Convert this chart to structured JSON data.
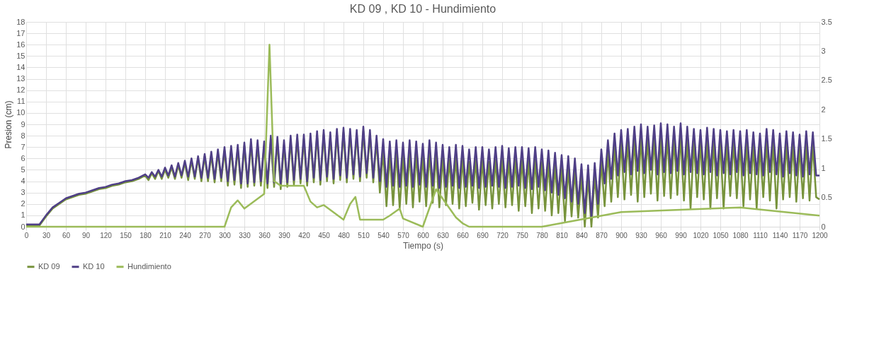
{
  "chart_data": {
    "type": "line",
    "title": "KD 09 , KD 10 - Hundimiento",
    "xlabel": "Tiempo (s)",
    "ylabel": "Presion (cm)",
    "x": [
      0,
      10,
      20,
      30,
      40,
      50,
      60,
      70,
      80,
      90,
      100,
      110,
      120,
      130,
      140,
      150,
      160,
      170,
      180,
      185,
      190,
      195,
      200,
      205,
      210,
      215,
      220,
      225,
      230,
      235,
      240,
      245,
      250,
      255,
      260,
      265,
      270,
      275,
      280,
      285,
      290,
      295,
      300,
      305,
      310,
      315,
      320,
      325,
      330,
      335,
      340,
      345,
      350,
      355,
      360,
      365,
      370,
      375,
      380,
      385,
      390,
      395,
      400,
      405,
      410,
      415,
      420,
      425,
      430,
      435,
      440,
      445,
      450,
      455,
      460,
      465,
      470,
      475,
      480,
      485,
      490,
      495,
      500,
      505,
      510,
      515,
      520,
      525,
      530,
      535,
      540,
      545,
      550,
      555,
      560,
      565,
      570,
      575,
      580,
      585,
      590,
      595,
      600,
      605,
      610,
      615,
      620,
      625,
      630,
      635,
      640,
      645,
      650,
      655,
      660,
      665,
      670,
      675,
      680,
      685,
      690,
      695,
      700,
      705,
      710,
      715,
      720,
      725,
      730,
      735,
      740,
      745,
      750,
      755,
      760,
      765,
      770,
      775,
      780,
      785,
      790,
      795,
      800,
      805,
      810,
      815,
      820,
      825,
      830,
      835,
      840,
      845,
      850,
      855,
      860,
      865,
      870,
      875,
      880,
      885,
      890,
      895,
      900,
      905,
      910,
      915,
      920,
      925,
      930,
      935,
      940,
      945,
      950,
      955,
      960,
      965,
      970,
      975,
      980,
      985,
      990,
      995,
      1000,
      1005,
      1010,
      1015,
      1020,
      1025,
      1030,
      1035,
      1040,
      1045,
      1050,
      1055,
      1060,
      1065,
      1070,
      1075,
      1080,
      1085,
      1090,
      1095,
      1100,
      1105,
      1110,
      1115,
      1120,
      1125,
      1130,
      1135,
      1140,
      1145,
      1150,
      1155,
      1160,
      1165,
      1170,
      1175,
      1180,
      1185,
      1190,
      1195,
      1200
    ],
    "xlim": [
      0,
      1200
    ],
    "xticks": [
      0,
      30,
      60,
      90,
      120,
      150,
      180,
      210,
      240,
      270,
      300,
      330,
      360,
      390,
      420,
      450,
      480,
      510,
      540,
      570,
      600,
      630,
      660,
      690,
      720,
      750,
      780,
      810,
      840,
      870,
      900,
      930,
      960,
      990,
      1020,
      1050,
      1080,
      1110,
      1140,
      1170,
      1200
    ],
    "ylim": [
      0,
      18
    ],
    "yticks": [
      0,
      1,
      2,
      3,
      4,
      5,
      6,
      7,
      8,
      9,
      10,
      11,
      12,
      13,
      14,
      15,
      16,
      17,
      18
    ],
    "y2lim": [
      0,
      3.5
    ],
    "y2ticks": [
      0,
      0.5,
      1,
      1.5,
      2,
      2.5,
      3,
      3.5
    ],
    "grid": true,
    "legend": "bottom",
    "series": [
      {
        "name": "KD 09",
        "color": "#77933c",
        "values": [
          0.1,
          0.1,
          0.1,
          0.9,
          1.6,
          2.0,
          2.4,
          2.6,
          2.8,
          2.9,
          3.1,
          3.3,
          3.4,
          3.6,
          3.7,
          3.9,
          4.0,
          4.2,
          4.5,
          4.1,
          4.7,
          4.2,
          4.9,
          4.2,
          5.0,
          4.3,
          5.2,
          4.2,
          5.4,
          4.3,
          5.6,
          4.1,
          5.8,
          4.2,
          6.0,
          4.0,
          6.2,
          4.0,
          6.3,
          3.9,
          6.5,
          4.0,
          6.7,
          3.6,
          6.8,
          3.7,
          6.9,
          3.4,
          7.1,
          3.5,
          7.3,
          3.6,
          7.2,
          3.6,
          7.1,
          3.4,
          7.6,
          3.5,
          7.5,
          3.3,
          7.2,
          3.5,
          7.6,
          3.7,
          7.7,
          3.8,
          7.7,
          3.6,
          7.8,
          3.9,
          8.0,
          3.7,
          8.1,
          4.0,
          7.9,
          3.8,
          8.2,
          4.1,
          8.3,
          3.9,
          8.2,
          4.2,
          8.1,
          4.0,
          8.4,
          4.3,
          8.1,
          3.9,
          7.6,
          3.0,
          6.6,
          1.8,
          6.4,
          1.9,
          6.5,
          1.6,
          6.3,
          2.0,
          6.5,
          1.7,
          6.4,
          2.2,
          6.2,
          1.8,
          6.5,
          2.1,
          6.3,
          1.7,
          6.1,
          1.9,
          5.9,
          2.0,
          6.1,
          1.6,
          6.0,
          1.8,
          5.7,
          2.1,
          5.9,
          1.5,
          5.9,
          1.9,
          5.7,
          1.6,
          5.9,
          2.0,
          6.0,
          1.7,
          5.8,
          1.9,
          5.9,
          1.4,
          5.9,
          1.8,
          5.8,
          1.2,
          5.9,
          1.6,
          5.7,
          1.4,
          5.6,
          1.0,
          5.4,
          1.2,
          5.2,
          0.5,
          5.1,
          0.9,
          4.9,
          0.8,
          4.4,
          0.0,
          4.3,
          0.0,
          4.5,
          0.8,
          5.7,
          1.8,
          6.5,
          2.2,
          7.1,
          2.6,
          7.4,
          2.4,
          7.5,
          2.8,
          7.7,
          2.2,
          7.9,
          2.6,
          7.7,
          2.9,
          7.8,
          2.3,
          8.0,
          2.7,
          7.9,
          2.5,
          7.7,
          2.8,
          8.0,
          2.3,
          7.7,
          1.6,
          7.5,
          2.6,
          7.4,
          2.4,
          7.6,
          1.6,
          7.5,
          2.5,
          7.4,
          1.6,
          7.3,
          2.7,
          7.4,
          2.5,
          7.3,
          1.8,
          7.4,
          2.4,
          7.2,
          1.6,
          7.1,
          2.6,
          7.5,
          2.3,
          7.4,
          1.6,
          7.1,
          2.4,
          7.3,
          2.6,
          7.2,
          2.2,
          7.0,
          2.5,
          7.3,
          2.3,
          7.2,
          2.6,
          2.4
        ]
      },
      {
        "name": "KD 10",
        "color": "#4f3f86",
        "values": [
          0.2,
          0.2,
          0.2,
          1.0,
          1.7,
          2.1,
          2.5,
          2.7,
          2.9,
          3.0,
          3.2,
          3.4,
          3.5,
          3.7,
          3.8,
          4.0,
          4.1,
          4.3,
          4.6,
          4.3,
          4.8,
          4.4,
          5.0,
          4.4,
          5.2,
          4.5,
          5.4,
          4.4,
          5.6,
          4.5,
          5.8,
          4.4,
          6.0,
          4.4,
          6.2,
          4.3,
          6.4,
          4.3,
          6.6,
          4.2,
          6.8,
          4.3,
          7.0,
          4.0,
          7.1,
          4.1,
          7.2,
          3.8,
          7.4,
          3.8,
          7.7,
          3.9,
          7.6,
          4.0,
          7.5,
          3.8,
          8.0,
          3.9,
          7.9,
          3.8,
          7.6,
          3.9,
          8.0,
          4.1,
          8.1,
          4.2,
          8.1,
          4.0,
          8.2,
          4.3,
          8.4,
          4.1,
          8.5,
          4.4,
          8.3,
          4.2,
          8.6,
          4.5,
          8.7,
          4.3,
          8.6,
          4.6,
          8.5,
          4.4,
          8.8,
          4.7,
          8.5,
          4.3,
          8.0,
          4.0,
          7.7,
          3.5,
          7.5,
          3.6,
          7.6,
          3.5,
          7.4,
          3.6,
          7.6,
          3.5,
          7.5,
          3.7,
          7.3,
          3.5,
          7.6,
          3.6,
          7.4,
          3.4,
          7.2,
          3.5,
          7.0,
          3.6,
          7.2,
          3.4,
          7.1,
          3.5,
          6.8,
          3.6,
          7.0,
          3.4,
          7.0,
          3.5,
          6.8,
          3.6,
          7.0,
          3.5,
          7.1,
          3.4,
          6.9,
          3.5,
          7.0,
          3.6,
          7.0,
          3.4,
          6.9,
          3.3,
          7.0,
          3.5,
          6.8,
          3.2,
          6.7,
          3.0,
          6.5,
          2.8,
          6.3,
          2.5,
          6.2,
          2.2,
          6.0,
          2.0,
          5.5,
          1.2,
          5.4,
          0.8,
          5.6,
          2.0,
          6.8,
          3.8,
          7.6,
          4.2,
          8.2,
          4.5,
          8.5,
          4.8,
          8.6,
          4.6,
          8.8,
          4.9,
          9.0,
          4.7,
          8.8,
          5.0,
          8.9,
          4.6,
          9.1,
          4.8,
          9.0,
          4.7,
          8.8,
          4.9,
          9.1,
          4.6,
          8.8,
          4.8,
          8.6,
          4.7,
          8.5,
          4.6,
          8.7,
          4.8,
          8.6,
          4.5,
          8.5,
          4.7,
          8.4,
          4.6,
          8.5,
          4.8,
          8.4,
          4.5,
          8.5,
          4.7,
          8.3,
          4.6,
          8.2,
          4.5,
          8.6,
          4.8,
          8.5,
          4.6,
          8.2,
          4.4,
          8.4,
          4.7,
          8.3,
          4.5,
          8.1,
          4.4,
          8.4,
          4.6,
          8.3,
          4.5,
          4.5
        ]
      },
      {
        "name": "Hundimiento",
        "color": "#9bbb59",
        "axis": "y2",
        "x": [
          0,
          300,
          310,
          320,
          330,
          360,
          368,
          375,
          385,
          420,
          430,
          440,
          450,
          480,
          490,
          498,
          505,
          540,
          550,
          565,
          570,
          600,
          620,
          650,
          660,
          670,
          780,
          900,
          1080,
          1200
        ],
        "values": [
          0,
          0,
          0.33,
          0.45,
          0.31,
          0.56,
          3.11,
          0.78,
          0.7,
          0.7,
          0.43,
          0.33,
          0.37,
          0.12,
          0.39,
          0.51,
          0.12,
          0.12,
          0.19,
          0.31,
          0.14,
          0,
          0.64,
          0.16,
          0.06,
          0,
          0,
          0.25,
          0.33,
          0.19
        ]
      }
    ]
  }
}
